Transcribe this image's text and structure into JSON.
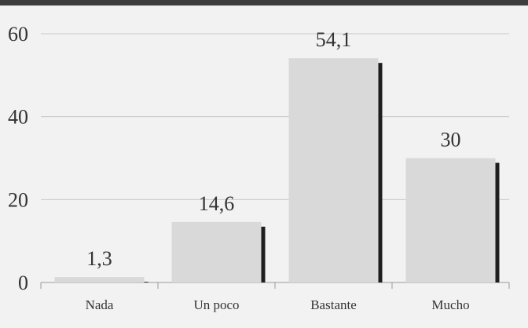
{
  "chart_data": {
    "type": "bar",
    "categories": [
      "Nada",
      "Un poco",
      "Bastante",
      "Mucho"
    ],
    "values": [
      1.3,
      14.6,
      54.1,
      30
    ],
    "value_labels": [
      "1,3",
      "14,6",
      "54,1",
      "30"
    ],
    "y_ticks": [
      0,
      20,
      40,
      60
    ],
    "ylim": [
      0,
      60
    ],
    "grid": true,
    "legend": "none",
    "title": "",
    "xlabel": "",
    "ylabel": ""
  },
  "colors": {
    "background": "#f2f2f2",
    "top_band": "#3d3d3d",
    "bar_fill": "#d9d9d9",
    "bar_shadow": "#1e1e1e",
    "grid": "#c8c8c8",
    "axis": "#9a9a9a",
    "text": "#333333"
  }
}
